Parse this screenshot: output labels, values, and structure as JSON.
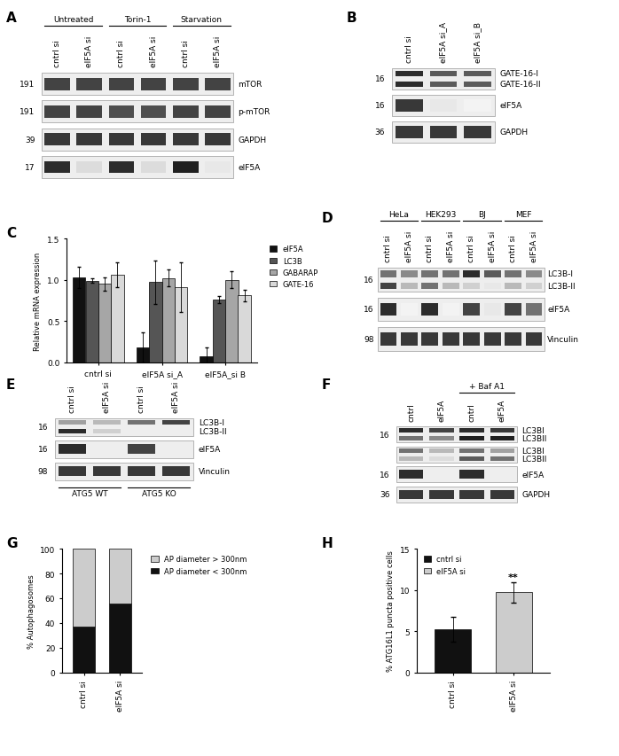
{
  "blots": [
    {
      "panel_label": "A",
      "lanes": [
        "cntrl si",
        "eIF5A si",
        "cntrl si",
        "eIF5A si",
        "cntrl si",
        "eIF5A si"
      ],
      "groups": [
        {
          "name": "Untreated",
          "span": [
            0,
            1
          ]
        },
        {
          "name": "Torin-1",
          "span": [
            2,
            3
          ]
        },
        {
          "name": "Starvation",
          "span": [
            4,
            5
          ]
        }
      ],
      "group_position": "top",
      "rows": [
        {
          "labels": [
            "mTOR"
          ],
          "mw": "191",
          "bands": [
            [
              0.8,
              0.8,
              0.8,
              0.8,
              0.8,
              0.8
            ]
          ]
        },
        {
          "labels": [
            "p-mTOR"
          ],
          "mw": "191",
          "bands": [
            [
              0.8,
              0.8,
              0.75,
              0.75,
              0.8,
              0.8
            ]
          ]
        },
        {
          "labels": [
            "GAPDH"
          ],
          "mw": "39",
          "bands": [
            [
              0.85,
              0.85,
              0.85,
              0.85,
              0.85,
              0.85
            ]
          ]
        },
        {
          "labels": [
            "eIF5A"
          ],
          "mw": "17",
          "bands": [
            [
              0.9,
              0.15,
              0.9,
              0.15,
              0.95,
              0.1
            ]
          ]
        }
      ]
    },
    {
      "panel_label": "B",
      "lanes": [
        "cntrl si",
        "eIF5A si_A",
        "eIF5A si_B"
      ],
      "groups": [],
      "group_position": "top",
      "rows": [
        {
          "labels": [
            "GATE-16-I",
            "GATE-16-II"
          ],
          "mw": "16",
          "bands": [
            [
              0.9,
              0.7,
              0.7
            ],
            [
              0.9,
              0.7,
              0.7
            ]
          ]
        },
        {
          "labels": [
            "eIF5A"
          ],
          "mw": "16",
          "bands": [
            [
              0.85,
              0.1,
              0.05
            ]
          ]
        },
        {
          "labels": [
            "GAPDH"
          ],
          "mw": "36",
          "bands": [
            [
              0.85,
              0.85,
              0.85
            ]
          ]
        }
      ]
    },
    {
      "panel_label": "D",
      "lanes": [
        "cntrl si",
        "eIF5A si",
        "cntrl si",
        "eIF5A si",
        "cntrl si",
        "eIF5A si",
        "cntrl si",
        "eIF5A si"
      ],
      "groups": [
        {
          "name": "HeLa",
          "span": [
            0,
            1
          ]
        },
        {
          "name": "HEK293",
          "span": [
            2,
            3
          ]
        },
        {
          "name": "BJ",
          "span": [
            4,
            5
          ]
        },
        {
          "name": "MEF",
          "span": [
            6,
            7
          ]
        }
      ],
      "group_position": "top",
      "rows": [
        {
          "labels": [
            "LC3B-I",
            "LC3B-II"
          ],
          "mw": "16",
          "bands": [
            [
              0.6,
              0.5,
              0.6,
              0.6,
              0.9,
              0.7,
              0.6,
              0.5
            ],
            [
              0.8,
              0.3,
              0.6,
              0.3,
              0.2,
              0.1,
              0.3,
              0.2
            ]
          ]
        },
        {
          "labels": [
            "eIF5A"
          ],
          "mw": "16",
          "bands": [
            [
              0.9,
              0.05,
              0.9,
              0.05,
              0.8,
              0.1,
              0.8,
              0.6
            ]
          ]
        },
        {
          "labels": [
            "Vinculin"
          ],
          "mw": "98",
          "bands": [
            [
              0.85,
              0.85,
              0.85,
              0.85,
              0.85,
              0.85,
              0.85,
              0.85
            ]
          ]
        }
      ]
    },
    {
      "panel_label": "E",
      "lanes": [
        "cntrl si",
        "eIF5A si",
        "cntrl si",
        "eIF5A si"
      ],
      "groups": [
        {
          "name": "ATG5 WT",
          "span": [
            0,
            1
          ]
        },
        {
          "name": "ATG5 KO",
          "span": [
            2,
            3
          ]
        }
      ],
      "group_position": "bottom",
      "rows": [
        {
          "labels": [
            "LC3B-I",
            "LC3B-II"
          ],
          "mw": "16",
          "bands": [
            [
              0.4,
              0.3,
              0.6,
              0.8
            ],
            [
              0.9,
              0.2,
              0.0,
              0.0
            ]
          ]
        },
        {
          "labels": [
            "eIF5A"
          ],
          "mw": "16",
          "bands": [
            [
              0.9,
              0.0,
              0.8,
              0.0
            ]
          ]
        },
        {
          "labels": [
            "Vinculin"
          ],
          "mw": "98",
          "bands": [
            [
              0.85,
              0.85,
              0.85,
              0.85
            ]
          ]
        }
      ]
    },
    {
      "panel_label": "F",
      "lanes": [
        "cntrl",
        "eIF5A",
        "cntrl",
        "eIF5A"
      ],
      "groups": [
        {
          "name": "+ Baf A1",
          "span": [
            2,
            3
          ]
        }
      ],
      "group_position": "top",
      "rows": [
        {
          "labels": [
            "LC3BI",
            "LC3BII"
          ],
          "mw": "16",
          "bands": [
            [
              0.9,
              0.8,
              0.9,
              0.85
            ],
            [
              0.6,
              0.5,
              0.95,
              0.95
            ]
          ]
        },
        {
          "labels": [
            "LC3BI",
            "LC3BII"
          ],
          "mw": null,
          "bands": [
            [
              0.6,
              0.3,
              0.6,
              0.4
            ],
            [
              0.3,
              0.15,
              0.7,
              0.6
            ]
          ]
        },
        {
          "labels": [
            "eIF5A"
          ],
          "mw": "16",
          "bands": [
            [
              0.9,
              0.0,
              0.9,
              0.0
            ]
          ]
        },
        {
          "labels": [
            "GAPDH"
          ],
          "mw": "36",
          "bands": [
            [
              0.85,
              0.85,
              0.85,
              0.85
            ]
          ]
        }
      ]
    }
  ],
  "chart_data": [
    {
      "panel_label": "C",
      "type": "bar",
      "ylabel": "Relative mRNA expression",
      "categories": [
        "cntrl si",
        "eIF5A si_A",
        "eIF5A_si B"
      ],
      "series": [
        {
          "name": "eIF5A",
          "color": "#111111",
          "values": [
            1.03,
            0.18,
            0.08
          ],
          "errors": [
            0.13,
            0.18,
            0.1
          ]
        },
        {
          "name": "LC3B",
          "color": "#555555",
          "values": [
            0.99,
            0.97,
            0.76
          ],
          "errors": [
            0.03,
            0.26,
            0.04
          ]
        },
        {
          "name": "GABARAP",
          "color": "#a6a6a6",
          "values": [
            0.95,
            1.02,
            1.0
          ],
          "errors": [
            0.08,
            0.1,
            0.1
          ]
        },
        {
          "name": "GATE-16",
          "color": "#d9d9d9",
          "values": [
            1.06,
            0.91,
            0.81
          ],
          "errors": [
            0.15,
            0.3,
            0.07
          ]
        }
      ],
      "ylim": [
        0,
        1.5
      ],
      "yticks": [
        {
          "value": 0,
          "label": "0.0"
        },
        0.5,
        {
          "value": 1,
          "label": "1.0"
        },
        1.5
      ],
      "legend": "right",
      "grid": false
    },
    {
      "panel_label": "G",
      "type": "bar",
      "stacked": true,
      "ylabel": "% Autophagosomes",
      "categories": [
        "cntrl si",
        "eIF5A si"
      ],
      "series": [
        {
          "name": "AP diameter < 300nm",
          "color": "#111111",
          "values": [
            37,
            56
          ]
        },
        {
          "name": "AP diameter > 300nm",
          "color": "#cccccc",
          "values": [
            63,
            44
          ]
        }
      ],
      "ylim": [
        0,
        100
      ],
      "yticks": [
        0,
        20,
        40,
        60,
        80,
        100
      ],
      "legend": "right",
      "grid": false
    },
    {
      "panel_label": "H",
      "type": "bar",
      "ylabel": "% ATG16L1 puncta positive cells",
      "categories": [
        "cntrl si",
        "eIF5A si"
      ],
      "values": [
        5.3,
        9.7
      ],
      "errors": [
        1.5,
        1.2
      ],
      "colors": [
        "#111111",
        "#cccccc"
      ],
      "ylim": [
        0,
        15
      ],
      "yticks": [
        0,
        5,
        10,
        15
      ],
      "legend": "upper left",
      "grid": false,
      "annotations": [
        {
          "text": "**",
          "category": 1
        }
      ]
    }
  ]
}
